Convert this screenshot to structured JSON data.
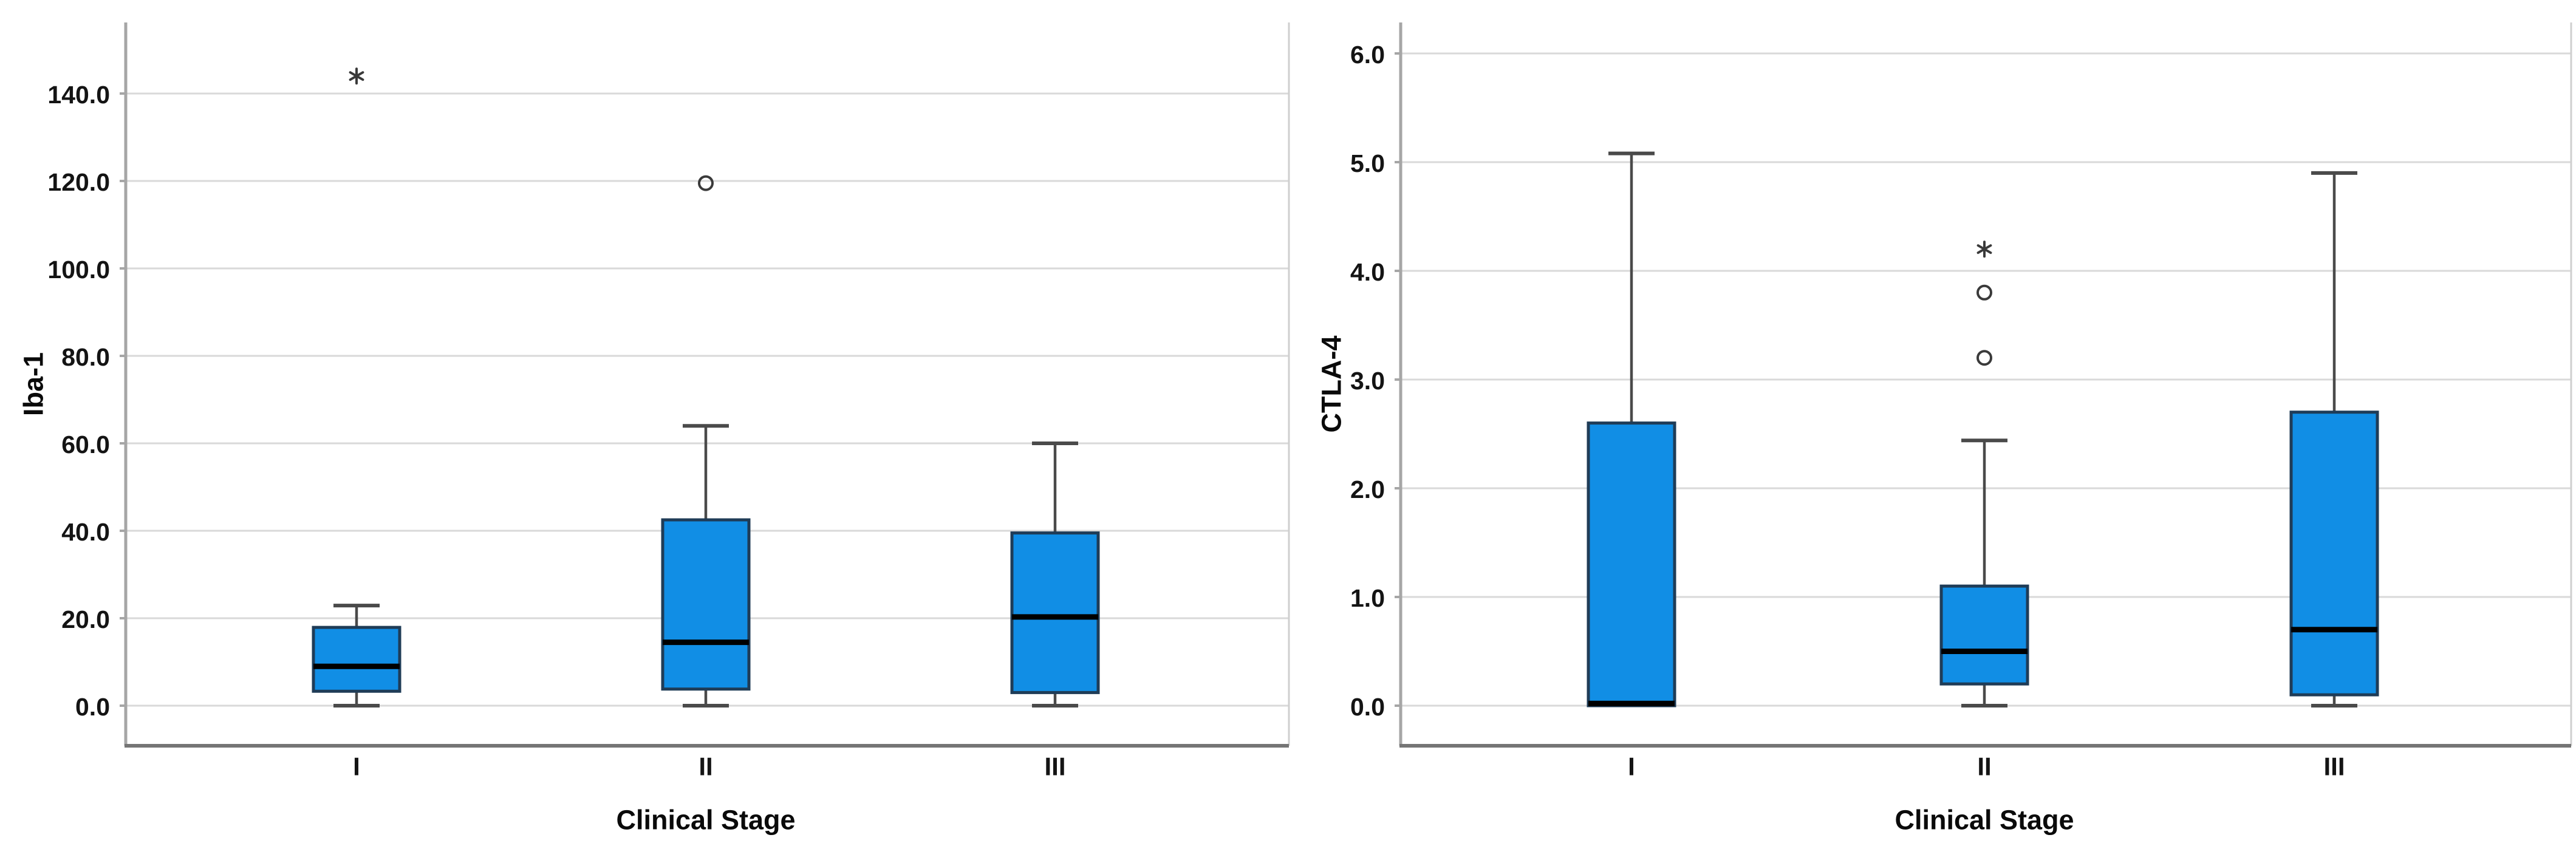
{
  "colors": {
    "box_fill": "#118EE5",
    "box_border": "#1F3C57",
    "median": "#000000",
    "whisker": "#4A4A4A",
    "outlier_marker": "#3A3A3A",
    "grid": "#D9D9D9",
    "axis": "#A6A6A6",
    "frame_bottom": "#757575",
    "frame_side": "#CFCFCF",
    "text": "#141414",
    "background": "#FFFFFF"
  },
  "chart_data": [
    {
      "id": "iba-1",
      "type": "box",
      "title": "",
      "ylabel": "Iba-1",
      "xlabel": "Clinical Stage",
      "categories": [
        "I",
        "II",
        "III"
      ],
      "ylim": [
        -9,
        157
      ],
      "grid": true,
      "legend": "none",
      "yticks": [
        {
          "value": 0,
          "label": "0.0"
        },
        {
          "value": 20,
          "label": "20.0"
        },
        {
          "value": 40,
          "label": "40.0"
        },
        {
          "value": 60,
          "label": "60.0"
        },
        {
          "value": 80,
          "label": "80.0"
        },
        {
          "value": 100,
          "label": "100.0"
        },
        {
          "value": 120,
          "label": "120.0"
        },
        {
          "value": 140,
          "label": "140.0"
        }
      ],
      "series": [
        {
          "category": "I",
          "min": 0,
          "q1": 3.3,
          "median": 9.0,
          "q3": 17.9,
          "max": 22.9,
          "outliers": [
            {
              "value": 144,
              "marker": "star"
            }
          ]
        },
        {
          "category": "II",
          "min": 0,
          "q1": 3.8,
          "median": 14.5,
          "q3": 42.5,
          "max": 64.0,
          "outliers": [
            {
              "value": 119.5,
              "marker": "circle"
            }
          ]
        },
        {
          "category": "III",
          "min": 0,
          "q1": 3.0,
          "median": 20.3,
          "q3": 39.5,
          "max": 60.0,
          "outliers": []
        }
      ]
    },
    {
      "id": "ctla-4",
      "type": "box",
      "title": "",
      "ylabel": "CTLA-4",
      "xlabel": "Clinical Stage",
      "categories": [
        "I",
        "II",
        "III"
      ],
      "ylim": [
        -0.4,
        6.3
      ],
      "grid": true,
      "legend": "none",
      "yticks": [
        {
          "value": 0,
          "label": "0.0"
        },
        {
          "value": 1,
          "label": "1.0"
        },
        {
          "value": 2,
          "label": "2.0"
        },
        {
          "value": 3,
          "label": "3.0"
        },
        {
          "value": 4,
          "label": "4.0"
        },
        {
          "value": 5,
          "label": "5.0"
        },
        {
          "value": 6,
          "label": "6.0"
        }
      ],
      "series": [
        {
          "category": "I",
          "min": 0,
          "q1": 0.0,
          "median": 0.02,
          "q3": 2.6,
          "max": 5.08,
          "outliers": []
        },
        {
          "category": "II",
          "min": 0,
          "q1": 0.2,
          "median": 0.5,
          "q3": 1.1,
          "max": 2.44,
          "outliers": [
            {
              "value": 3.2,
              "marker": "circle"
            },
            {
              "value": 3.8,
              "marker": "circle"
            },
            {
              "value": 4.2,
              "marker": "star"
            }
          ]
        },
        {
          "category": "III",
          "min": 0,
          "q1": 0.1,
          "median": 0.7,
          "q3": 2.7,
          "max": 4.9,
          "outliers": []
        }
      ]
    }
  ]
}
